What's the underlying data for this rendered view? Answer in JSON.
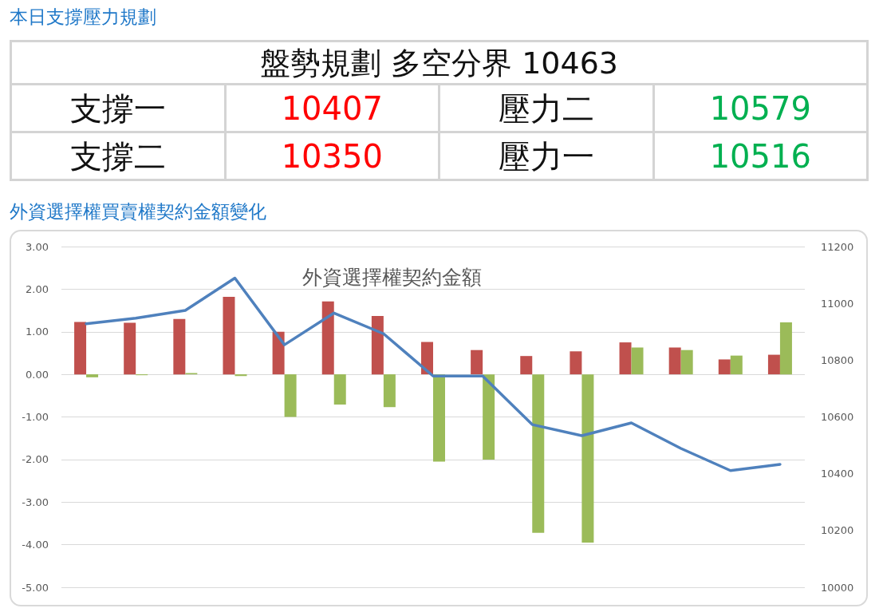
{
  "chart_data": [
    {
      "type": "other",
      "title": "本日支撐壓力規劃",
      "subtitle": "盤勢規劃 多空分界 10463",
      "categories": [
        "支撐一",
        "壓力二",
        "支撐二",
        "壓力一"
      ],
      "values": [
        10407,
        10579,
        10350,
        10516
      ],
      "colors": [
        "#ff0000",
        "#00b050",
        "#ff0000",
        "#00b050"
      ],
      "data_labels": true
    },
    {
      "type": "bar",
      "title": "外資選擇權買賣權契約金額變化",
      "subtitle": "外資選擇權契約金額",
      "categories": [
        null,
        null,
        null,
        null,
        null,
        null,
        null,
        null,
        null,
        null,
        null,
        null,
        null,
        null,
        null
      ],
      "series": [
        {
          "type": "bar",
          "color": "#c0504d",
          "values": [
            1.23,
            1.21,
            1.3,
            1.82,
            1.0,
            1.71,
            1.37,
            0.76,
            0.57,
            0.43,
            0.54,
            0.75,
            0.63,
            0.35,
            0.46
          ]
        },
        {
          "type": "bar",
          "color": "#9bbb59",
          "values": [
            -0.07,
            -0.02,
            0.03,
            -0.04,
            -1.0,
            -0.71,
            -0.77,
            -2.05,
            -2.0,
            -3.72,
            -3.95,
            0.63,
            0.57,
            0.44,
            1.22
          ]
        },
        {
          "type": "line",
          "axis": "y2",
          "color": "#4f81bd",
          "values": [
            10928,
            10948,
            10975,
            11089,
            10854,
            10966,
            10893,
            10744,
            10744,
            10573,
            10534,
            10579,
            10489,
            10411,
            10433
          ]
        }
      ],
      "ylim": [
        -5,
        3
      ],
      "yticks": [
        {
          "value": -5,
          "label": "-5.00"
        },
        {
          "value": -4,
          "label": "-4.00"
        },
        {
          "value": -3,
          "label": "-3.00"
        },
        {
          "value": -2,
          "label": "-2.00"
        },
        {
          "value": -1,
          "label": "-1.00"
        },
        {
          "value": 0,
          "label": "0.00"
        },
        {
          "value": 1,
          "label": "1.00"
        },
        {
          "value": 2,
          "label": "2.00"
        },
        {
          "value": 3,
          "label": "3.00"
        }
      ],
      "y2lim": [
        10000,
        11200
      ],
      "y2ticks": [
        10000,
        10200,
        10400,
        10600,
        10800,
        11000,
        11200
      ],
      "grid": "y"
    }
  ]
}
